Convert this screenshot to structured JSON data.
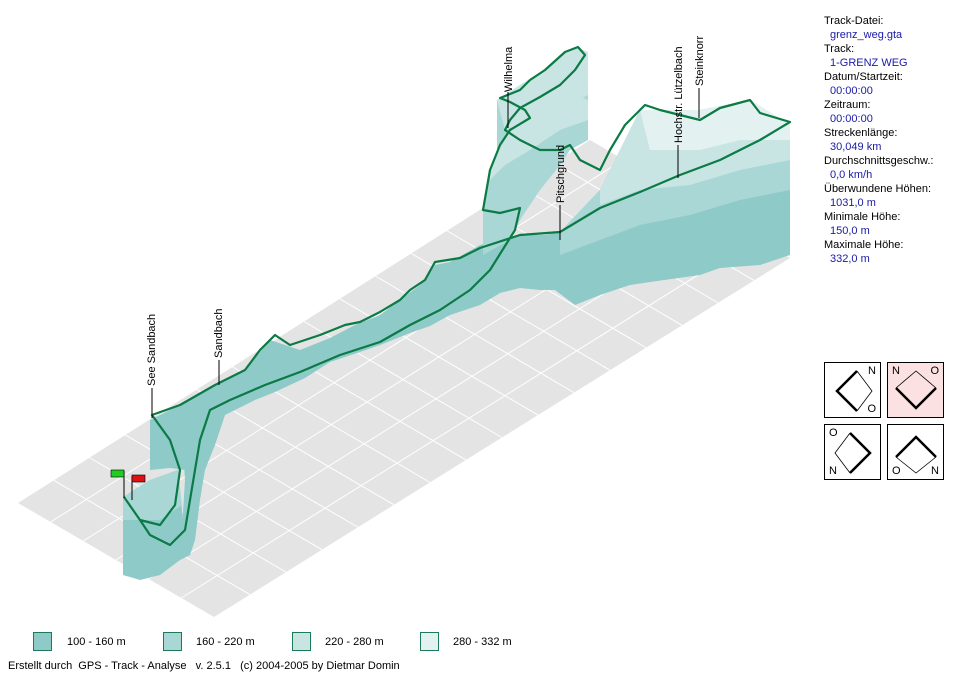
{
  "colors": {
    "band1": "#8ecac8",
    "band2": "#a9d7d5",
    "band3": "#c8e5e4",
    "band4": "#e3f2f1",
    "track": "#0b7a45",
    "floor": "#e4e4e4",
    "start_flag": "#22cc22",
    "end_flag": "#dd1111",
    "active_view": "#fbe1e1"
  },
  "waypoints": [
    "Wilhelma",
    "Pitschgrund",
    "Hochstr. Lützelbach",
    "Steinknorr",
    "See Sandbach",
    "Sandbach"
  ],
  "info": [
    {
      "label": "Track-Datei:",
      "value": "grenz_weg.gta"
    },
    {
      "label": "Track:",
      "value": "1-GRENZ WEG"
    },
    {
      "label": "Datum/Startzeit:",
      "value": "00:00:00"
    },
    {
      "label": "Zeitraum:",
      "value": "00:00:00"
    },
    {
      "label": "Streckenlänge:",
      "value": "30,049 km"
    },
    {
      "label": "Durchschnittsgeschw.:",
      "value": "0,0 km/h"
    },
    {
      "label": "Überwundene Höhen:",
      "value": "1031,0 m"
    },
    {
      "label": "Minimale Höhe:",
      "value": "150,0 m"
    },
    {
      "label": "Maximale Höhe:",
      "value": "332,0 m"
    }
  ],
  "views": [
    {
      "a": "N",
      "b": "O",
      "active": false
    },
    {
      "a": "N",
      "b": "O",
      "active": true
    },
    {
      "a": "O",
      "b": "N",
      "active": false
    },
    {
      "a": "O",
      "b": "N",
      "active": false
    }
  ],
  "legend": [
    "100 - 160 m",
    "160 - 220 m",
    "220 - 280 m",
    "280 - 332 m"
  ],
  "footer": "Erstellt durch  GPS - Track - Analyse   v. 2.5.1   (c) 2004-2005 by Dietmar Domin"
}
